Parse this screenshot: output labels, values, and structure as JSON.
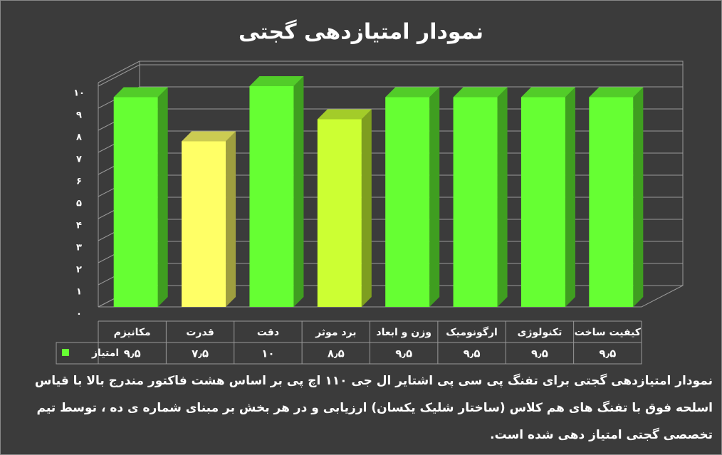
{
  "chart_data": {
    "type": "bar",
    "title": "نمودار امتیازدهی گجتی",
    "categories": [
      "مکانیزم",
      "قدرت",
      "دقت",
      "برد موثر",
      "وزن و ابعاد",
      "ارگونومیک",
      "تکنولوژی",
      "کیفیت ساخت"
    ],
    "series": [
      {
        "name": "امتیاز",
        "color": "#66ff33",
        "values": [
          9.5,
          7.5,
          10,
          8.5,
          9.5,
          9.5,
          9.5,
          9.5
        ],
        "value_labels": [
          "۹٫۵",
          "۷٫۵",
          "۱۰",
          "۸٫۵",
          "۹٫۵",
          "۹٫۵",
          "۹٫۵",
          "۹٫۵"
        ],
        "colors": [
          "#66ff33",
          "#ffff66",
          "#66ff33",
          "#ccff33",
          "#66ff33",
          "#66ff33",
          "#66ff33",
          "#66ff33"
        ]
      }
    ],
    "ylim": [
      0,
      10
    ],
    "yticks": [
      {
        "value": 0,
        "label": "۰"
      },
      {
        "value": 1,
        "label": "۱"
      },
      {
        "value": 2,
        "label": "۲"
      },
      {
        "value": 3,
        "label": "۳"
      },
      {
        "value": 4,
        "label": "۴"
      },
      {
        "value": 5,
        "label": "۵"
      },
      {
        "value": 6,
        "label": "۶"
      },
      {
        "value": 7,
        "label": "۷"
      },
      {
        "value": 8,
        "label": "۸"
      },
      {
        "value": 9,
        "label": "۹"
      },
      {
        "value": 10,
        "label": "۱۰"
      }
    ],
    "grid": true,
    "note": "نمودار امتیازدهی گجتی برای تفنگ پی سی پی اشتایر ال جی ۱۱۰ اچ پی بر اساس هشت فاکتور مندرج بالا با قیاس اسلحه فوق با تفنگ های هم کلاس (ساختار شلیک یکسان) ارزیابی و در هر بخش بر مبنای شماره ی ده ، توسط تیم تخصصی گجتی امتیاز دهی شده است."
  }
}
